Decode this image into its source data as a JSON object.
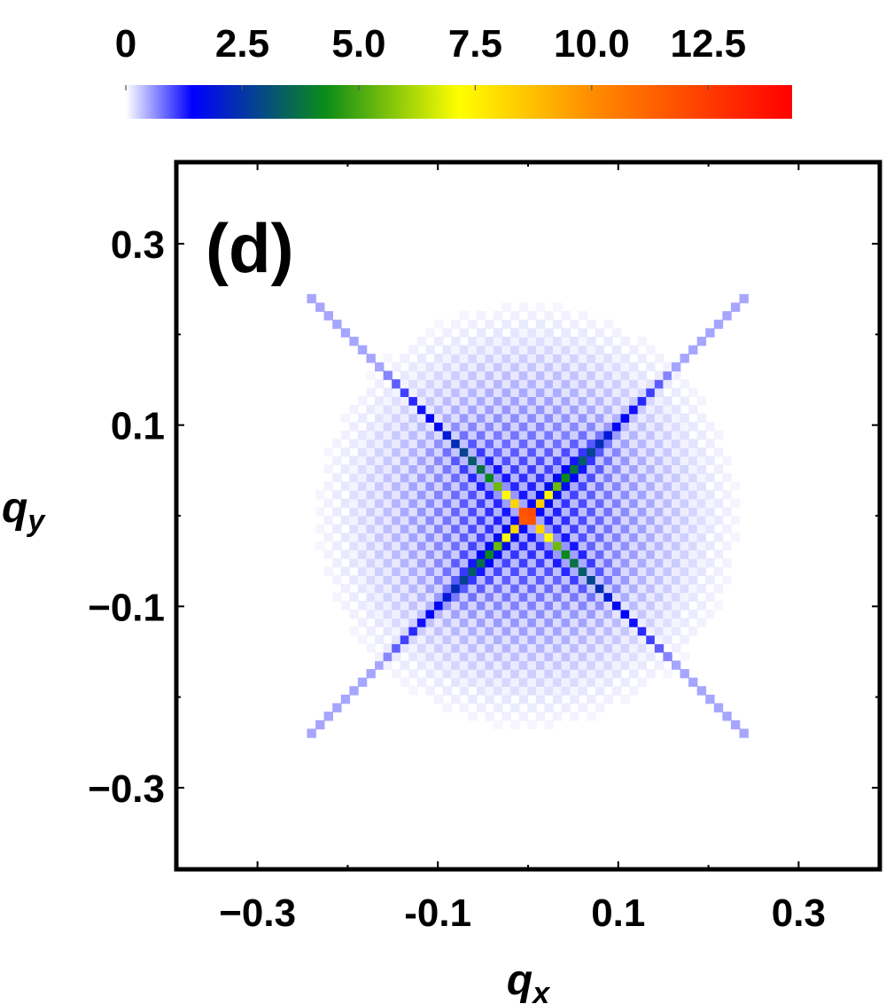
{
  "chart_data": {
    "type": "heatmap",
    "panel_label": "(d)",
    "xlabel": {
      "main": "q",
      "sub": "x"
    },
    "ylabel": {
      "main": "q",
      "sub": "y"
    },
    "xlim": [
      -0.39,
      0.39
    ],
    "ylim": [
      -0.39,
      0.39
    ],
    "x_ticks": [
      -0.3,
      -0.1,
      0.1,
      0.3
    ],
    "y_ticks": [
      0.3,
      0.1,
      -0.1,
      -0.3
    ],
    "x_tick_labels": [
      "−0.3",
      "-0.1",
      "0.1",
      "0.3"
    ],
    "y_tick_labels": [
      "0.3",
      "0.1",
      "−0.1",
      "−0.3"
    ],
    "colorbar": {
      "range": [
        0,
        14.3
      ],
      "ticks": [
        0,
        2.5,
        5.0,
        7.5,
        10.0,
        12.5
      ],
      "tick_labels": [
        "0",
        "2.5",
        "5.0",
        "7.5",
        "10.0",
        "12.5"
      ],
      "colors": [
        "#ffffff",
        "#0000ff",
        "#0b8c17",
        "#ffff00",
        "#ff8c00",
        "#ff0000"
      ],
      "color_stops": [
        0,
        0.1,
        0.3,
        0.5,
        0.7,
        1.0
      ]
    },
    "grid": false,
    "pattern": "X-shaped intensity along the diagonals qx = ±qy, checkerboard lattice, peak value ≈14 at origin",
    "data": {
      "grid_step": 0.0094,
      "grid_range": [
        -0.24,
        0.24
      ],
      "peak_value": 14.3,
      "diagonal_values": [
        [
          0.0,
          14.3
        ],
        [
          0.01,
          10.5
        ],
        [
          0.02,
          8.2
        ],
        [
          0.03,
          7.8
        ],
        [
          0.04,
          6.0
        ],
        [
          0.06,
          4.2
        ],
        [
          0.08,
          3.5
        ],
        [
          0.1,
          2.8
        ],
        [
          0.12,
          2.1
        ],
        [
          0.14,
          1.6
        ],
        [
          0.17,
          1.3
        ],
        [
          0.2,
          1.0
        ],
        [
          0.23,
          0.5
        ]
      ],
      "diffuse_cloud_values": [
        [
          0.0,
          1.5
        ],
        [
          0.05,
          1.1
        ],
        [
          0.1,
          0.7
        ],
        [
          0.15,
          0.4
        ],
        [
          0.2,
          0.15
        ],
        [
          0.25,
          0.0
        ]
      ]
    }
  }
}
